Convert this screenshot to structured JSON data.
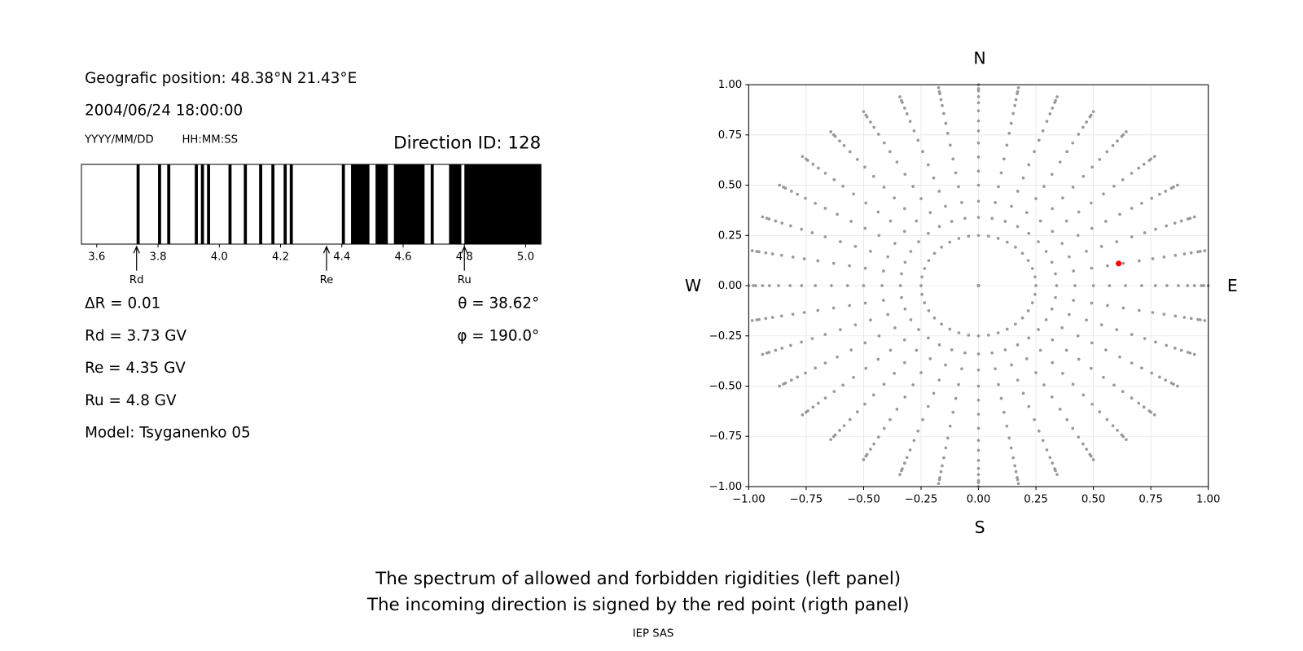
{
  "info": {
    "position": "Geografic position: 48.38°N 21.43°E",
    "datetime": "2004/06/24 18:00:00",
    "date_format": "YYYY/MM/DD",
    "time_format": "HH:MM:SS",
    "direction_id": "Direction ID: 128",
    "params": [
      "ΔR = 0.01",
      "Rd = 3.73 GV",
      "Re = 4.35 GV",
      "Ru = 4.8 GV",
      "Model: Tsyganenko 05"
    ],
    "angles": [
      "θ = 38.62°",
      "φ = 190.0°"
    ]
  },
  "chart_data": [
    {
      "type": "spectrum",
      "xlim": [
        3.55,
        5.05
      ],
      "xticks": [
        3.6,
        3.8,
        {
          "value": 4,
          "label": "4.0"
        },
        4.2,
        4.4,
        4.6,
        4.8,
        {
          "value": 5,
          "label": "5.0"
        }
      ],
      "color": "#000000",
      "forbidden": [
        [
          3.73,
          3.74
        ],
        [
          3.8,
          3.81
        ],
        [
          3.83,
          3.84
        ],
        [
          3.92,
          3.93
        ],
        [
          3.94,
          3.95
        ],
        [
          3.96,
          3.97
        ],
        [
          4.03,
          4.04
        ],
        [
          4.08,
          4.09
        ],
        [
          4.13,
          4.14
        ],
        [
          4.17,
          4.18
        ],
        [
          4.21,
          4.22
        ],
        [
          4.23,
          4.24
        ],
        [
          4.4,
          4.41
        ],
        [
          4.43,
          4.49
        ],
        [
          4.51,
          4.55
        ],
        [
          4.57,
          4.67
        ],
        [
          4.69,
          4.7
        ],
        [
          4.75,
          4.79
        ],
        [
          4.8,
          5.05
        ]
      ],
      "markers": [
        {
          "label": "Rd",
          "value": 3.73
        },
        {
          "label": "Re",
          "value": 4.35
        },
        {
          "label": "Ru",
          "value": 4.8
        }
      ]
    },
    {
      "type": "scatter",
      "xlim": [
        -1,
        1
      ],
      "ylim": [
        -1,
        1
      ],
      "grid": true,
      "xticks": [
        {
          "value": -1,
          "label": "−1.00"
        },
        {
          "value": -0.75,
          "label": "−0.75"
        },
        {
          "value": -0.5,
          "label": "−0.50"
        },
        {
          "value": -0.25,
          "label": "−0.25"
        },
        {
          "value": 0,
          "label": "0.00"
        },
        {
          "value": 0.25,
          "label": "0.25"
        },
        {
          "value": 0.5,
          "label": "0.50"
        },
        {
          "value": 0.75,
          "label": "0.75"
        },
        {
          "value": 1,
          "label": "1.00"
        }
      ],
      "yticks": [
        {
          "value": -1,
          "label": "−1.00"
        },
        {
          "value": -0.75,
          "label": "−0.75"
        },
        {
          "value": -0.5,
          "label": "−0.50"
        },
        {
          "value": -0.25,
          "label": "−0.25"
        },
        {
          "value": 0,
          "label": "0.00"
        },
        {
          "value": 0.25,
          "label": "0.25"
        },
        {
          "value": 0.5,
          "label": "0.50"
        },
        {
          "value": 0.75,
          "label": "0.75"
        },
        {
          "value": 1,
          "label": "1.00"
        }
      ],
      "compass": {
        "north": "N",
        "south": "S",
        "west": "W",
        "east": "E"
      },
      "directions": {
        "color": "#999999",
        "radii": [
          0,
          0.25,
          0.34,
          0.42,
          0.5,
          0.57,
          0.64,
          0.71,
          0.77,
          0.82,
          0.87,
          0.91,
          0.94,
          0.97,
          0.98,
          1.0
        ],
        "azimuths": [
          0,
          10,
          20,
          30,
          40,
          50,
          60,
          70,
          80,
          90,
          100,
          110,
          120,
          130,
          140,
          150,
          160,
          170,
          180,
          190,
          200,
          210,
          220,
          230,
          240,
          250,
          260,
          270,
          280,
          290,
          300,
          310,
          320,
          330,
          340,
          350
        ]
      },
      "selected": {
        "color": "#ff0000",
        "x": [
          0.61
        ],
        "y": [
          0.11
        ]
      }
    }
  ],
  "caption": [
    "The spectrum of allowed and forbidden rigidities (left panel)",
    "The incoming direction is signed by the red point (rigth panel)"
  ],
  "footer": "IEP SAS"
}
